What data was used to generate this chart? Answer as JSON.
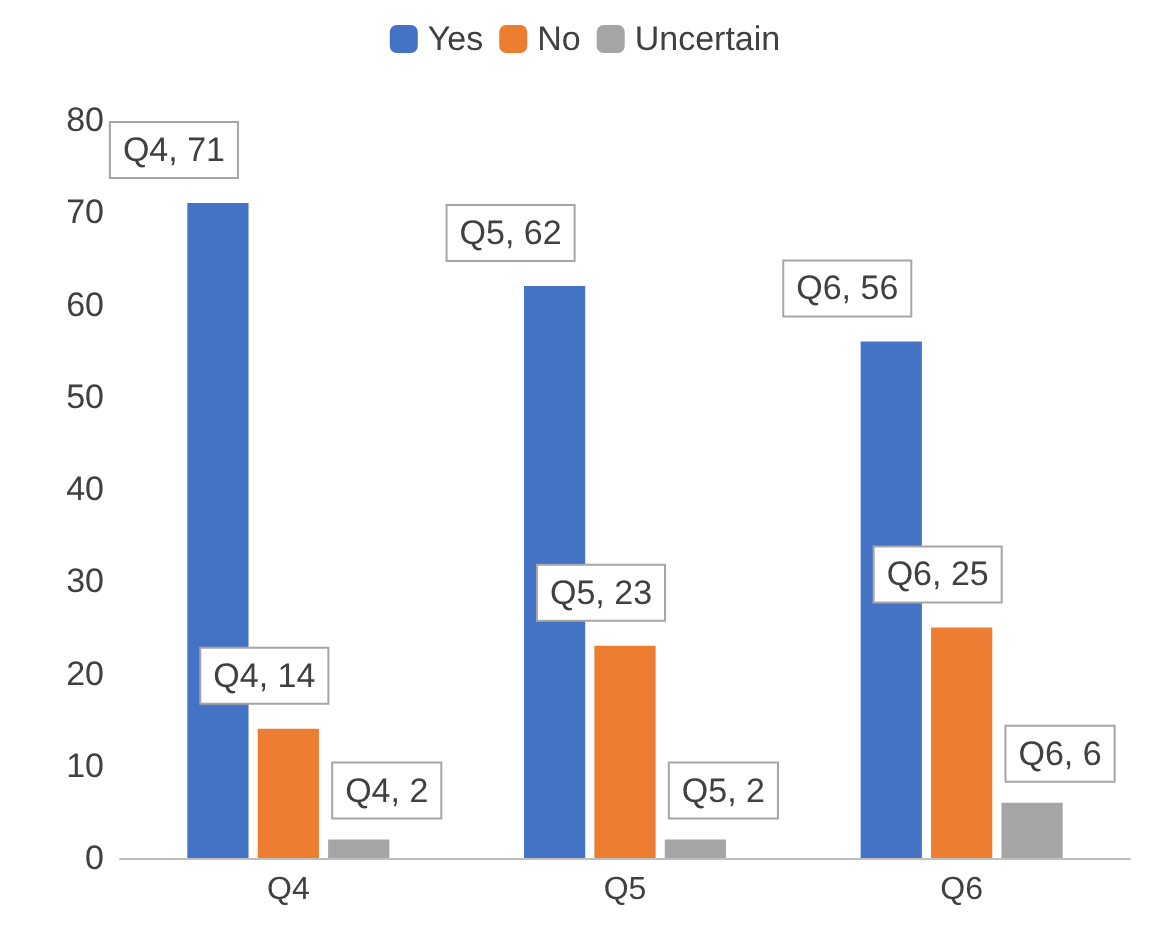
{
  "chart_data": {
    "type": "bar",
    "categories": [
      "Q4",
      "Q5",
      "Q6"
    ],
    "series": [
      {
        "name": "Yes",
        "color": "#4472c4",
        "values": [
          71,
          62,
          56
        ],
        "value_labels": [
          "Q4, 71",
          "Q5, 62",
          "Q6, 56"
        ]
      },
      {
        "name": "No",
        "color": "#ed7d31",
        "values": [
          14,
          23,
          25
        ],
        "value_labels": [
          "Q4, 14",
          "Q5, 23",
          "Q6, 25"
        ]
      },
      {
        "name": "Uncertain",
        "color": "#a5a5a5",
        "values": [
          2,
          2,
          6
        ],
        "value_labels": [
          "Q4, 2",
          "Q5, 2",
          "Q6, 6"
        ]
      }
    ],
    "ylim": [
      0,
      80
    ],
    "yticks": [
      0,
      10,
      20,
      30,
      40,
      50,
      60,
      70,
      80
    ],
    "grid": false,
    "legend": "top"
  }
}
